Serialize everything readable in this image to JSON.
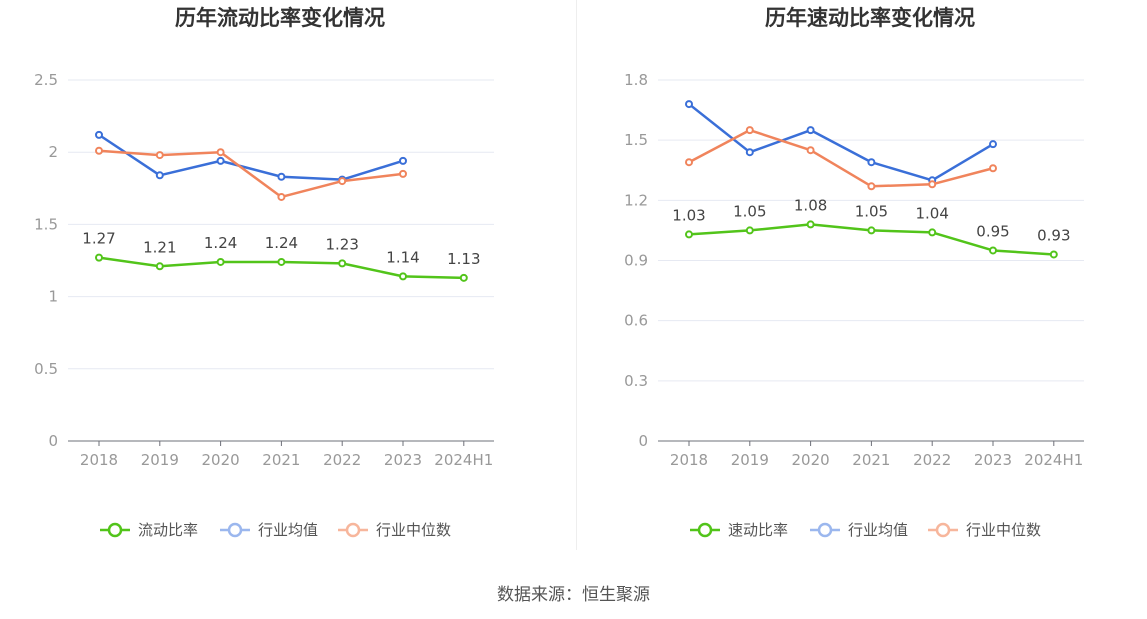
{
  "source_text": "数据来源：恒生聚源",
  "chart_data": [
    {
      "type": "line",
      "title": "历年流动比率变化情况",
      "categories": [
        "2018",
        "2019",
        "2020",
        "2021",
        "2022",
        "2023",
        "2024H1"
      ],
      "y_ticks": [
        "0",
        "0.5",
        "1",
        "1.5",
        "2",
        "2.5"
      ],
      "ylim": [
        0,
        2.5
      ],
      "grid": true,
      "legend_position": "bottom",
      "series": [
        {
          "name": "流动比率",
          "color": "#52c41a",
          "values": [
            1.27,
            1.21,
            1.24,
            1.24,
            1.23,
            1.14,
            1.13
          ],
          "labels": [
            "1.27",
            "1.21",
            "1.24",
            "1.24",
            "1.23",
            "1.14",
            "1.13"
          ]
        },
        {
          "name": "行业均值",
          "color": "#3a6fd8",
          "values": [
            2.12,
            1.84,
            1.94,
            1.83,
            1.81,
            1.94,
            null
          ]
        },
        {
          "name": "行业中位数",
          "color": "#f0845c",
          "values": [
            2.01,
            1.98,
            2.0,
            1.69,
            1.8,
            1.85,
            null
          ]
        }
      ]
    },
    {
      "type": "line",
      "title": "历年速动比率变化情况",
      "categories": [
        "2018",
        "2019",
        "2020",
        "2021",
        "2022",
        "2023",
        "2024H1"
      ],
      "y_ticks": [
        "0",
        "0.3",
        "0.6",
        "0.9",
        "1.2",
        "1.5",
        "1.8"
      ],
      "ylim": [
        0,
        1.8
      ],
      "grid": true,
      "legend_position": "bottom",
      "series": [
        {
          "name": "速动比率",
          "color": "#52c41a",
          "values": [
            1.03,
            1.05,
            1.08,
            1.05,
            1.04,
            0.95,
            0.93
          ],
          "labels": [
            "1.03",
            "1.05",
            "1.08",
            "1.05",
            "1.04",
            "0.95",
            "0.93"
          ]
        },
        {
          "name": "行业均值",
          "color": "#3a6fd8",
          "values": [
            1.68,
            1.44,
            1.55,
            1.39,
            1.3,
            1.48,
            null
          ]
        },
        {
          "name": "行业中位数",
          "color": "#f0845c",
          "values": [
            1.39,
            1.55,
            1.45,
            1.27,
            1.28,
            1.36,
            null
          ]
        }
      ]
    }
  ]
}
